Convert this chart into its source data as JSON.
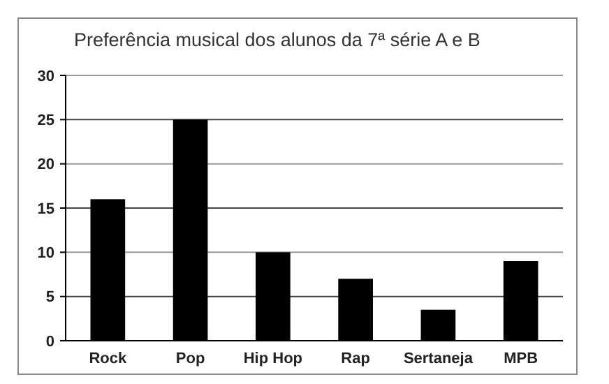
{
  "chart_data": {
    "type": "bar",
    "title": "Preferência musical dos alunos da 7ª série A e B",
    "categories": [
      "Rock",
      "Pop",
      "Hip Hop",
      "Rap",
      "Sertaneja",
      "MPB"
    ],
    "values": [
      16,
      25,
      10,
      7,
      3.5,
      9
    ],
    "color": "#000000",
    "ylim": [
      0,
      30
    ],
    "yticks": [
      0,
      5,
      10,
      15,
      20,
      25,
      30
    ],
    "grid": "y"
  }
}
